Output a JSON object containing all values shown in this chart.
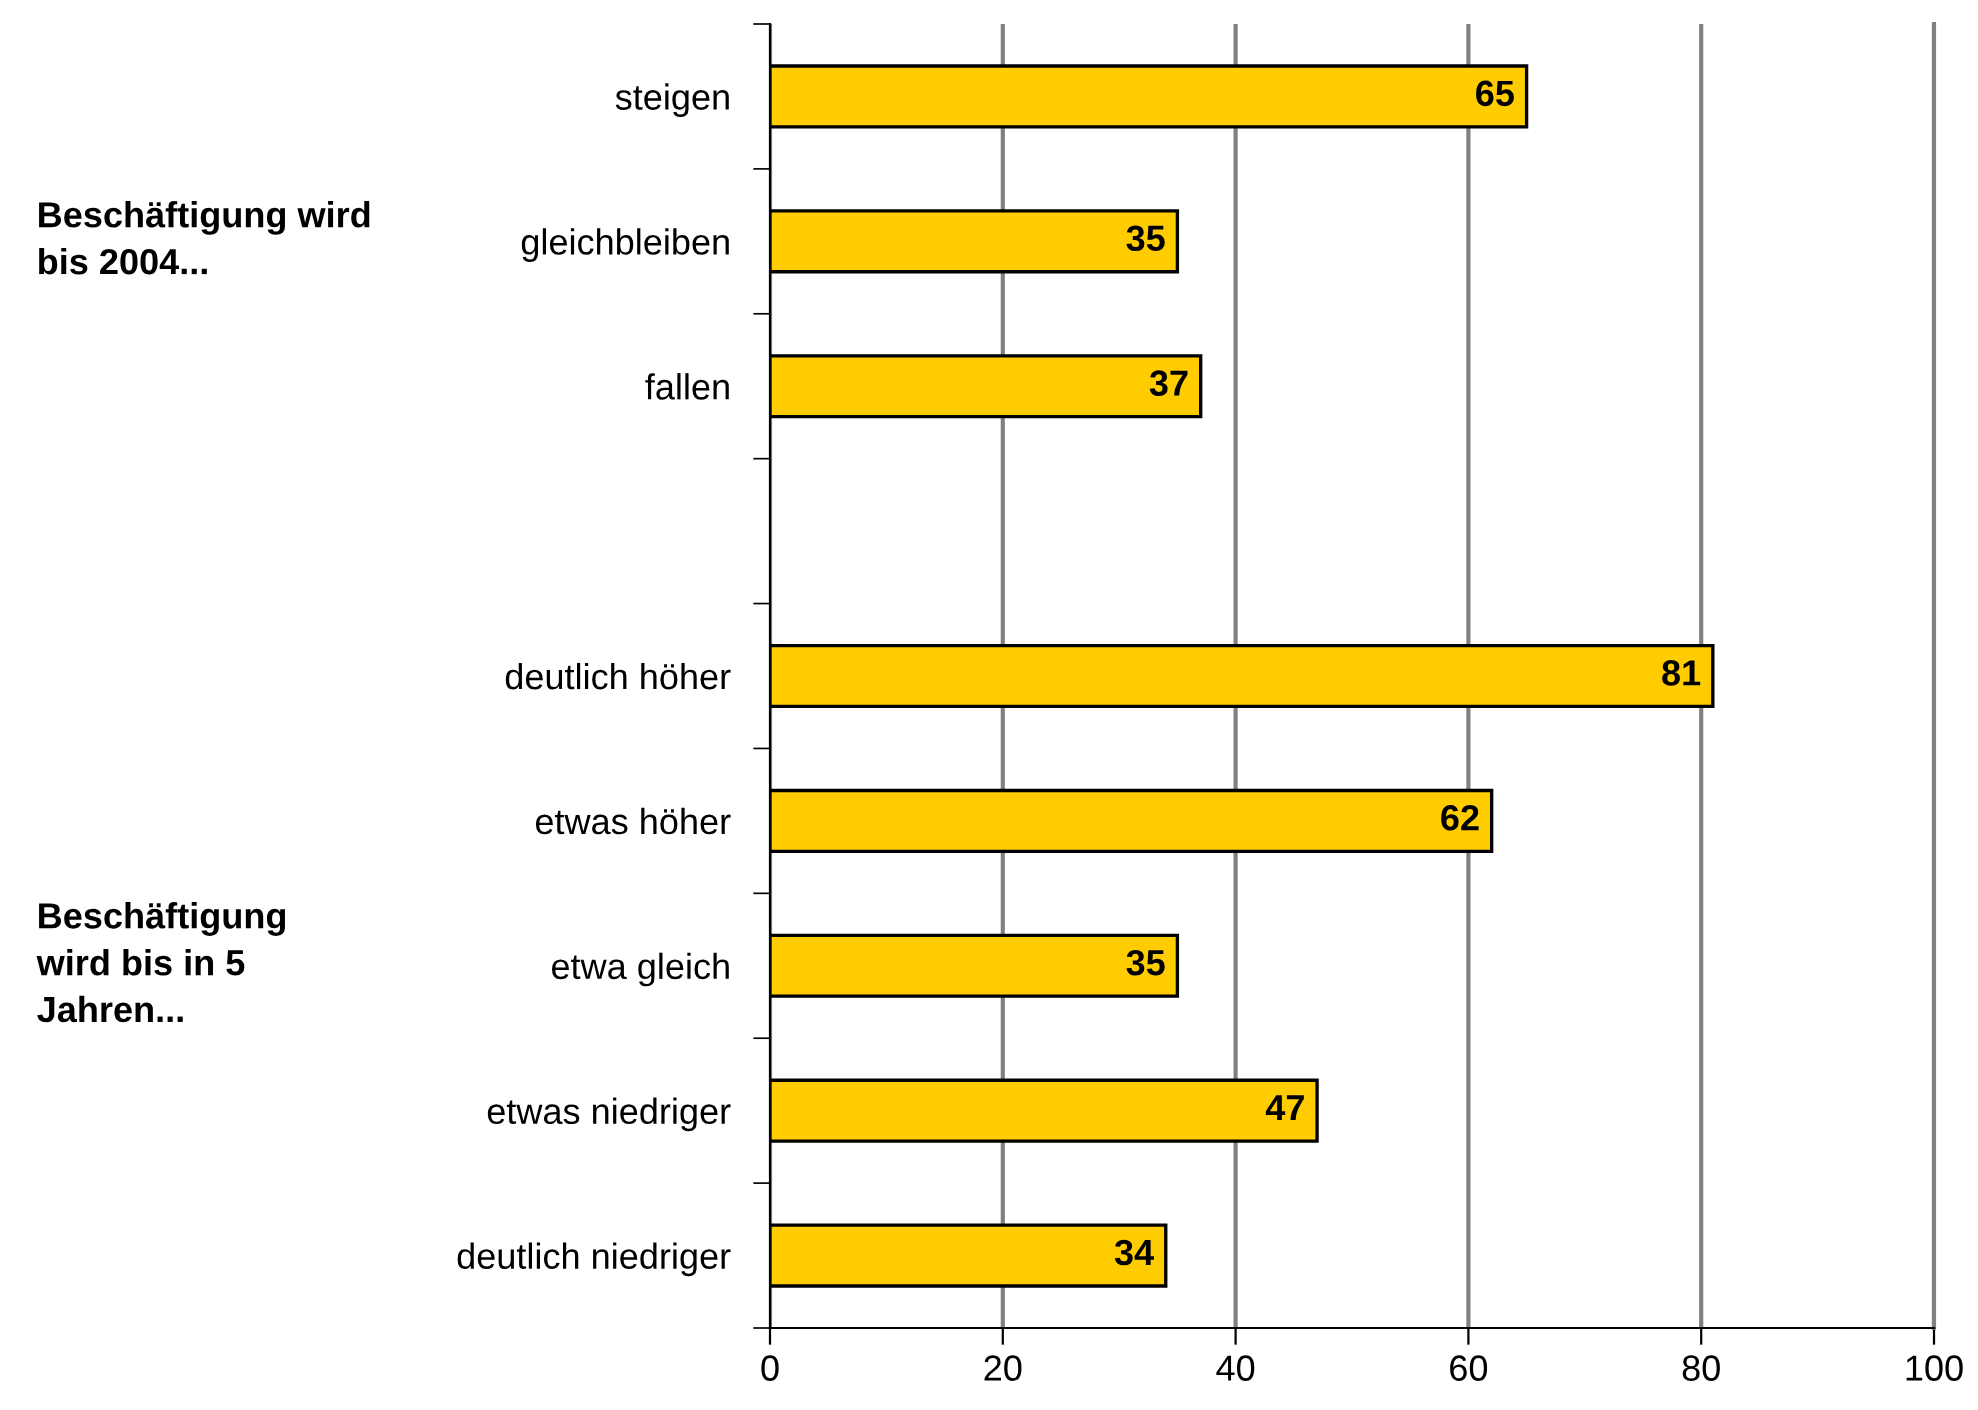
{
  "chart_data": {
    "type": "bar",
    "orientation": "horizontal",
    "categories": [
      "steigen",
      "gleichbleiben",
      "fallen",
      null,
      "deutlich höher",
      "etwas höher",
      "etwa gleich",
      "etwas niedriger",
      "deutlich niedriger"
    ],
    "values": [
      65,
      35,
      37,
      null,
      81,
      62,
      35,
      47,
      34
    ],
    "color": "#ffcc00",
    "xlim": [
      0,
      100
    ],
    "xticks": [
      0,
      20,
      40,
      60,
      80,
      100
    ],
    "grid": "x",
    "data_labels": true,
    "annotations": [
      "Beschäftigung wird\nbis 2004...",
      "Beschäftigung\nwird bis in 5\nJahren..."
    ]
  }
}
